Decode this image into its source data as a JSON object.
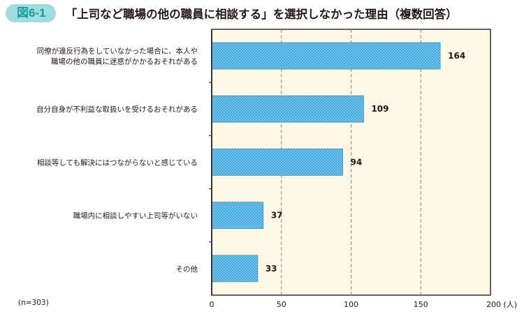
{
  "header": {
    "figure_tag": "図6-1",
    "title": "「上司など職場の他の職員に相談する」を選択しなかった理由（複数回答）"
  },
  "note": "(n=303)",
  "colors": {
    "bar": "#3fa9e0",
    "plot_bg": "#fef9e7",
    "grid": "#a08070",
    "tag_bg": "#9fdcdc"
  },
  "chart_data": {
    "type": "bar",
    "orientation": "horizontal",
    "title": "「上司など職場の他の職員に相談する」を選択しなかった理由（複数回答）",
    "categories": [
      [
        "同僚が違反行為をしていなかった場合に、本人や",
        "職場の他の職員に迷惑がかかるおそれがある"
      ],
      [
        "自分自身が不利益な取扱いを受けるおそれがある"
      ],
      [
        "相談等しても解決にはつながらないと感じている"
      ],
      [
        "職場内に相談しやすい上司等がいない"
      ],
      [
        "その他"
      ]
    ],
    "values": [
      164,
      109,
      94,
      37,
      33
    ],
    "xlim": [
      0,
      200
    ],
    "xticks": [
      "0",
      "50",
      "100",
      "150",
      "200 (人)"
    ],
    "xtick_values": [
      0,
      50,
      100,
      150,
      200
    ],
    "xlabel": "(人)",
    "grid": "vertical dashed"
  }
}
